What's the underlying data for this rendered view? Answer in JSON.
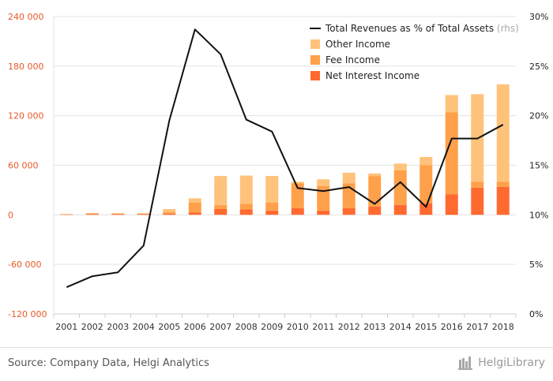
{
  "colors": {
    "net_interest": "#ff6a30",
    "fee": "#ffa04a",
    "other": "#ffc27a",
    "line": "#111111",
    "left_axis_text": "#e8592a",
    "right_axis_text": "#222222",
    "grid": "#e3e3e3"
  },
  "chart_data": {
    "type": "bar",
    "stacked": true,
    "categories": [
      "2001",
      "2002",
      "2003",
      "2004",
      "2005",
      "2006",
      "2007",
      "2008",
      "2009",
      "2010",
      "2011",
      "2012",
      "2013",
      "2014",
      "2015",
      "2016",
      "2017",
      "2018"
    ],
    "series": [
      {
        "name": "Net Interest Income",
        "values": [
          500,
          1000,
          1000,
          800,
          1500,
          3000,
          7000,
          6500,
          5000,
          8000,
          5000,
          8000,
          10000,
          12000,
          14000,
          25000,
          33000,
          34000
        ]
      },
      {
        "name": "Fee Income",
        "values": [
          300,
          800,
          700,
          700,
          2000,
          12000,
          5000,
          7000,
          10000,
          30000,
          30000,
          30000,
          37000,
          42000,
          46000,
          99000,
          7000,
          6000
        ]
      },
      {
        "name": "Other Income",
        "values": [
          200,
          300,
          300,
          300,
          3500,
          5000,
          35000,
          34000,
          32000,
          2000,
          8000,
          13000,
          3000,
          8000,
          10000,
          21000,
          106000,
          118000
        ]
      }
    ],
    "line": {
      "name": "Total Revenues as % of Total Assets",
      "name_suffix": "(rhs)",
      "axis": "right",
      "values": [
        2.7,
        3.8,
        4.2,
        6.9,
        19.5,
        28.7,
        26.2,
        19.6,
        18.4,
        12.7,
        12.4,
        12.8,
        11.1,
        13.3,
        10.8,
        17.7,
        17.7,
        19.1
      ]
    },
    "ylim": [
      -120000,
      240000
    ],
    "y2lim": [
      0,
      30
    ],
    "yticks": [
      "-120 000",
      "-60 000",
      "0",
      "60 000",
      "120 000",
      "180 000",
      "240 000"
    ],
    "y2ticks": [
      "0%",
      "5%",
      "10%",
      "15%",
      "20%",
      "25%",
      "30%"
    ],
    "legend_position": "top-right",
    "grid": "horizontal"
  },
  "footer": {
    "source": "Source: Company Data, Helgi Analytics",
    "brand": "HelgiLibrary"
  }
}
